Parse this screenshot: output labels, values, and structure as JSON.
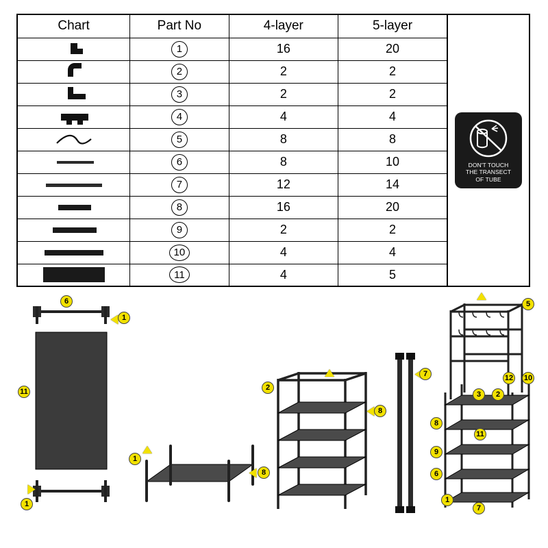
{
  "table": {
    "headers": {
      "chart": "Chart",
      "partno": "Part No",
      "layer4": "4-layer",
      "layer5": "5-layer"
    },
    "rows": [
      {
        "icon": "connector-L-short",
        "no": "1",
        "layer4": "16",
        "layer5": "20"
      },
      {
        "icon": "connector-elbow",
        "no": "2",
        "layer4": "2",
        "layer5": "2"
      },
      {
        "icon": "connector-L-long",
        "no": "3",
        "layer4": "2",
        "layer5": "2"
      },
      {
        "icon": "connector-T",
        "no": "4",
        "layer4": "4",
        "layer5": "4"
      },
      {
        "icon": "hook",
        "no": "5",
        "layer4": "8",
        "layer5": "8"
      },
      {
        "icon": "tube-thin-short",
        "no": "6",
        "layer4": "8",
        "layer5": "10"
      },
      {
        "icon": "tube-long",
        "no": "7",
        "layer4": "12",
        "layer5": "14"
      },
      {
        "icon": "tube-thick-short",
        "no": "8",
        "layer4": "16",
        "layer5": "20"
      },
      {
        "icon": "tube-thick-med",
        "no": "9",
        "layer4": "2",
        "layer5": "2"
      },
      {
        "icon": "tube-thick-long",
        "no": "10",
        "layer4": "4",
        "layer5": "4"
      },
      {
        "icon": "fabric-panel",
        "no": "11",
        "layer4": "4",
        "layer5": "5"
      }
    ]
  },
  "warning": {
    "line1": "DON'T TOUCH",
    "line2": "THE TRANSECT",
    "line3": "OF TUBE",
    "bg": "#1a1a1a",
    "fg": "#ffffff"
  },
  "callout_color": "#f2e100",
  "assembly": {
    "step1": {
      "labels": [
        "6",
        "1",
        "11",
        "1"
      ]
    },
    "step2": {
      "labels": [
        "1",
        "8"
      ]
    },
    "step3": {
      "labels": [
        "2",
        "8"
      ]
    },
    "step4": {
      "labels": [
        "7"
      ]
    },
    "step5": {
      "labels": [
        "5",
        "12",
        "10",
        "3",
        "2",
        "8",
        "11",
        "9",
        "6",
        "1",
        "7"
      ]
    }
  }
}
